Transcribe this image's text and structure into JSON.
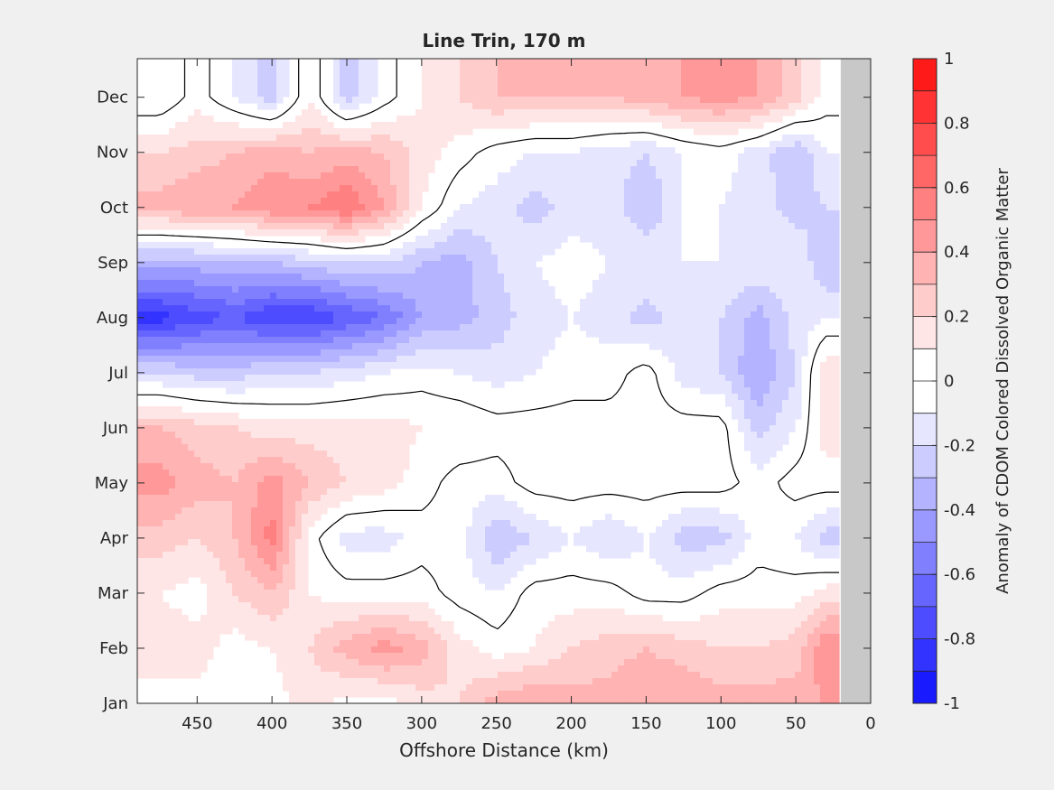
{
  "chart_data": {
    "type": "heatmap",
    "subtype": "filled-contour",
    "title": "Line Trin, 170 m",
    "xlabel": "Offshore Distance (km)",
    "ylabel": "",
    "x_reversed": true,
    "xlim": [
      0,
      490
    ],
    "ylim_months": [
      "Jan",
      "Dec"
    ],
    "x_ticks": [
      450,
      400,
      350,
      300,
      250,
      200,
      150,
      100,
      50,
      0
    ],
    "y_ticks": [
      "Jan",
      "Feb",
      "Mar",
      "Apr",
      "May",
      "Jun",
      "Jul",
      "Aug",
      "Sep",
      "Oct",
      "Nov",
      "Dec"
    ],
    "no_data_region_km": [
      0,
      20
    ],
    "no_data_color": "#c8c8c8",
    "zero_contour_color": "#000000",
    "colorbar": {
      "label": "Anomaly of CDOM Colored Dissolved Organic Matter",
      "range": [
        -1,
        1
      ],
      "ticks": [
        1,
        0.8,
        0.6,
        0.4,
        0.2,
        0,
        -0.2,
        -0.4,
        -0.6,
        -0.8,
        -1
      ],
      "levels": [
        -1,
        -0.9,
        -0.8,
        -0.7,
        -0.6,
        -0.5,
        -0.4,
        -0.3,
        -0.2,
        -0.1,
        0,
        0.1,
        0.2,
        0.3,
        0.4,
        0.5,
        0.6,
        0.7,
        0.8,
        0.9,
        1
      ],
      "colors": [
        "#0000ff",
        "#1a1aff",
        "#3333ff",
        "#4d4dff",
        "#6666ff",
        "#8080ff",
        "#9999ff",
        "#b3b3ff",
        "#ccccff",
        "#e6e6ff",
        "#ffffff",
        "#ffffff",
        "#ffe6e6",
        "#ffcccc",
        "#ffb3b3",
        "#ff9999",
        "#ff8080",
        "#ff6666",
        "#ff4d4d",
        "#ff3333",
        "#ff1a1a",
        "#ff0000"
      ]
    },
    "x_km": [
      475,
      450,
      425,
      400,
      375,
      350,
      325,
      300,
      275,
      250,
      225,
      200,
      175,
      150,
      125,
      100,
      75,
      50,
      30
    ],
    "y_month": [
      1,
      2,
      3,
      4,
      5,
      6,
      7,
      8,
      9,
      10,
      11,
      12
    ],
    "values": [
      [
        0.05,
        0.05,
        0.05,
        0.05,
        0.15,
        0.05,
        0.05,
        0.15,
        0.2,
        0.35,
        0.4,
        0.35,
        0.35,
        0.4,
        0.4,
        0.35,
        0.35,
        0.35,
        0.4
      ],
      [
        0.15,
        0.15,
        0.05,
        0.1,
        0.2,
        0.35,
        0.45,
        0.35,
        0.15,
        0.05,
        0.1,
        0.2,
        0.25,
        0.3,
        0.25,
        0.2,
        0.2,
        0.25,
        0.5
      ],
      [
        0.1,
        0.05,
        0.2,
        0.3,
        0.1,
        0.05,
        0.05,
        0.05,
        -0.05,
        -0.1,
        0.05,
        0.05,
        0.05,
        -0.05,
        -0.05,
        0.05,
        0.05,
        0.05,
        0.15
      ],
      [
        0.25,
        0.2,
        0.3,
        0.55,
        0.05,
        -0.15,
        -0.15,
        -0.05,
        -0.05,
        -0.3,
        -0.2,
        -0.1,
        -0.2,
        -0.1,
        -0.25,
        -0.25,
        -0.05,
        -0.1,
        -0.25
      ],
      [
        0.45,
        0.35,
        0.3,
        0.45,
        0.3,
        0.2,
        0.15,
        0.05,
        -0.05,
        -0.05,
        0.05,
        0.05,
        0.05,
        0.05,
        0.05,
        0.05,
        -0.05,
        0.05,
        0.05
      ],
      [
        0.3,
        0.25,
        0.2,
        0.15,
        0.15,
        0.15,
        0.15,
        0.1,
        0.1,
        0.05,
        0.05,
        0.05,
        0.05,
        0.05,
        0.05,
        0.05,
        -0.25,
        -0.1,
        0.15
      ],
      [
        -0.2,
        -0.25,
        -0.25,
        -0.2,
        -0.2,
        -0.15,
        -0.1,
        -0.05,
        -0.1,
        -0.15,
        -0.1,
        -0.05,
        -0.05,
        0.05,
        -0.15,
        -0.2,
        -0.4,
        -0.2,
        0.2
      ],
      [
        -0.85,
        -0.75,
        -0.7,
        -0.8,
        -0.8,
        -0.7,
        -0.6,
        -0.4,
        -0.35,
        -0.25,
        -0.15,
        -0.1,
        -0.15,
        -0.25,
        -0.15,
        -0.2,
        -0.35,
        -0.15,
        -0.1
      ],
      [
        -0.35,
        -0.35,
        -0.3,
        -0.3,
        -0.25,
        -0.2,
        -0.2,
        -0.3,
        -0.35,
        -0.2,
        -0.1,
        -0.05,
        -0.1,
        -0.1,
        -0.1,
        -0.1,
        -0.1,
        -0.1,
        -0.3
      ],
      [
        0.35,
        0.4,
        0.4,
        0.5,
        0.5,
        0.6,
        0.4,
        0.1,
        -0.1,
        -0.15,
        -0.25,
        -0.15,
        -0.15,
        -0.3,
        -0.1,
        -0.1,
        -0.15,
        -0.25,
        -0.2
      ],
      [
        0.2,
        0.25,
        0.3,
        0.35,
        0.3,
        0.35,
        0.3,
        0.15,
        0.05,
        -0.05,
        -0.1,
        -0.1,
        -0.15,
        -0.2,
        -0.1,
        -0.05,
        -0.15,
        -0.3,
        -0.1
      ],
      [
        -0.1,
        0.05,
        -0.1,
        -0.25,
        0.1,
        -0.25,
        -0.05,
        0.1,
        0.2,
        0.3,
        0.3,
        0.3,
        0.3,
        0.35,
        0.4,
        0.45,
        0.4,
        0.25,
        0.05
      ]
    ]
  }
}
